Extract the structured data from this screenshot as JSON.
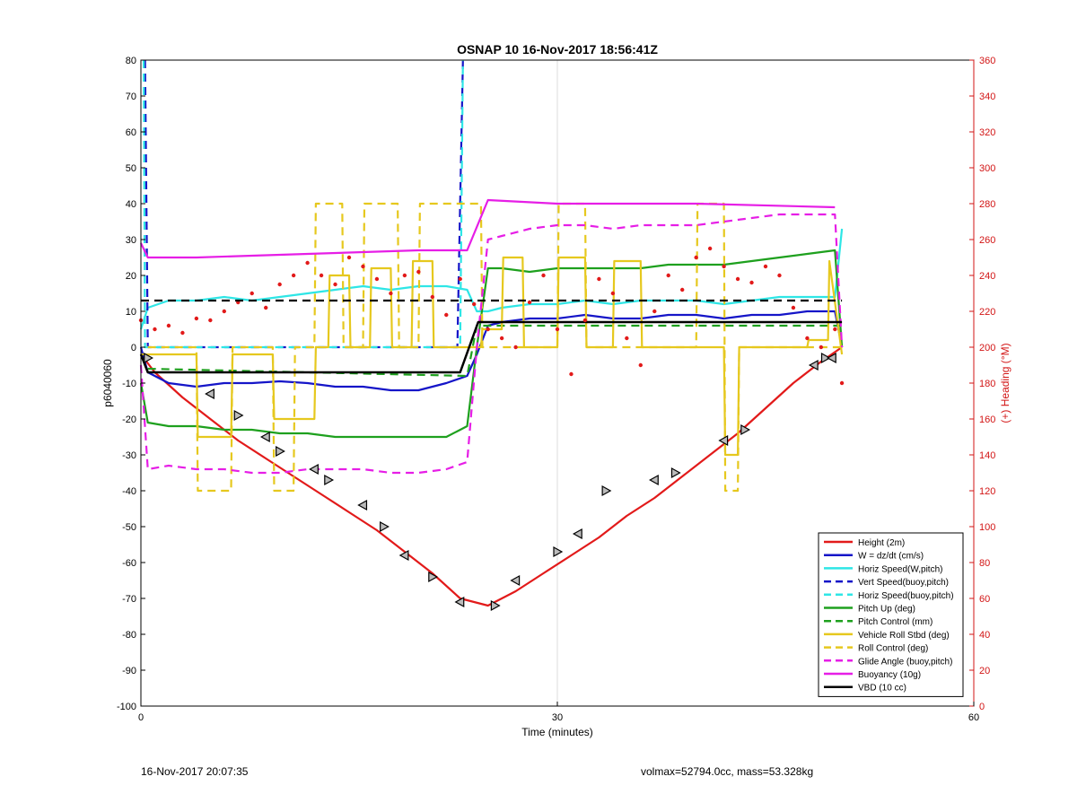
{
  "chart_data": {
    "type": "line",
    "title": "OSNAP 10 16-Nov-2017 18:56:41Z",
    "xlabel": "Time (minutes)",
    "ylabel": "p6040060",
    "y2label": "(+) Heading (°M)",
    "xlim": [
      0,
      60
    ],
    "ylim": [
      -100,
      80
    ],
    "y2lim": [
      0,
      360
    ],
    "xticks": [
      0,
      30,
      60
    ],
    "yticks": [
      -100,
      -90,
      -80,
      -70,
      -60,
      -50,
      -40,
      -30,
      -20,
      -10,
      0,
      10,
      20,
      30,
      40,
      50,
      60,
      70,
      80
    ],
    "y2ticks": [
      0,
      20,
      40,
      60,
      80,
      100,
      120,
      140,
      160,
      180,
      200,
      220,
      240,
      260,
      280,
      300,
      320,
      340,
      360
    ],
    "grid": "x-only",
    "legend_position": "bottom-right",
    "colors": {
      "height": "#e21a1a",
      "w": "#1515c8",
      "horiz_speed": "#2ee6e6",
      "vert_speed_buoy": "#1515c8",
      "horiz_speed_buoy": "#2ee6e6",
      "pitch": "#1ea01e",
      "pitch_control": "#1ea01e",
      "roll": "#e6c81e",
      "roll_control": "#e6c81e",
      "glide_angle": "#e61ee6",
      "buoyancy": "#e61ee6",
      "vbd": "#000000",
      "heading": "#e21a1a",
      "heading_axis": "#d21414"
    },
    "series": [
      {
        "key": "height",
        "name": "Height (2m)",
        "style": "solid",
        "x": [
          0,
          1,
          3,
          5,
          7,
          9,
          11,
          13,
          15,
          17,
          19,
          21,
          23,
          24,
          25,
          27,
          29,
          31,
          33,
          35,
          37,
          39,
          41,
          43,
          45,
          47,
          49,
          50.5
        ],
        "y": [
          -2,
          -7,
          -14,
          -20,
          -26,
          -31,
          -36,
          -41,
          -46,
          -51,
          -57,
          -63,
          -70,
          -71,
          -72,
          -68,
          -63,
          -58,
          -53,
          -47,
          -42,
          -36,
          -30,
          -24,
          -17,
          -10,
          -4,
          0
        ]
      },
      {
        "key": "w",
        "name": "W = dz/dt (cm/s)",
        "style": "solid",
        "x": [
          0,
          0.5,
          2,
          4,
          6,
          8,
          10,
          12,
          14,
          16,
          18,
          20,
          22,
          23.5,
          24.2,
          25,
          26,
          28,
          30,
          32,
          34,
          36,
          38,
          40,
          42,
          44,
          46,
          48,
          50,
          50.5
        ],
        "y": [
          0,
          -7,
          -10,
          -11,
          -10,
          -10,
          -9.5,
          -10,
          -11,
          -11,
          -12,
          -12,
          -10,
          -8,
          -2,
          6,
          7,
          8,
          8,
          9,
          8,
          8,
          9,
          9,
          8,
          9,
          9,
          10,
          10,
          0
        ]
      },
      {
        "key": "horiz_speed",
        "name": "Horiz Speed(W,pitch)",
        "style": "solid",
        "x": [
          0,
          0.5,
          2,
          4,
          6,
          8,
          10,
          12,
          14,
          16,
          18,
          20,
          22,
          23.5,
          24.2,
          25,
          26,
          28,
          30,
          32,
          34,
          36,
          38,
          40,
          42,
          44,
          46,
          48,
          50,
          50.5
        ],
        "y": [
          5,
          11,
          13,
          13,
          14,
          13,
          14,
          15,
          16,
          17,
          16,
          17,
          17,
          16,
          10,
          10,
          11,
          12,
          12,
          13,
          12,
          13,
          13,
          13,
          12,
          13,
          14,
          14,
          14,
          33
        ]
      },
      {
        "key": "vert_speed_buoy",
        "name": "Vert Speed(buoy,pitch)",
        "style": "dashed",
        "x": [
          0.3,
          0.5,
          22.8,
          23.2
        ],
        "y": [
          80,
          0,
          0,
          80
        ]
      },
      {
        "key": "horiz_speed_buoy",
        "name": "Horiz Speed(buoy,pitch)",
        "style": "dashed",
        "x": [
          0.2,
          0.3,
          1,
          23,
          23.2
        ],
        "y": [
          80,
          0,
          0,
          0,
          80
        ]
      },
      {
        "key": "pitch",
        "name": "Pitch Up (deg)",
        "style": "solid",
        "x": [
          0,
          0.5,
          2,
          4,
          6,
          8,
          10,
          12,
          14,
          16,
          18,
          20,
          22,
          23.5,
          24.2,
          25,
          26,
          28,
          30,
          32,
          34,
          36,
          38,
          40,
          42,
          44,
          46,
          48,
          50,
          50.5
        ],
        "y": [
          -10,
          -21,
          -22,
          -22,
          -23,
          -23,
          -24,
          -24,
          -25,
          -25,
          -25,
          -25,
          -25,
          -22,
          0,
          22,
          22,
          21,
          22,
          22,
          22,
          22,
          23,
          23,
          23,
          24,
          25,
          26,
          27,
          0
        ]
      },
      {
        "key": "pitch_control",
        "name": "Pitch Control (mm)",
        "style": "dashed",
        "x": [
          0.5,
          23.5,
          24.2,
          50.5
        ],
        "y": [
          -6,
          -8,
          6,
          6
        ]
      },
      {
        "key": "roll",
        "name": "Vehicle Roll Stbd (deg)",
        "style": "solid",
        "x": [
          0,
          1,
          4,
          4.1,
          6.5,
          6.6,
          9.5,
          9.6,
          12.5,
          12.6,
          13.5,
          13.6,
          15,
          15.1,
          16.5,
          16.6,
          18,
          18.1,
          19.5,
          19.6,
          21,
          21.1,
          23,
          24.5,
          24.6,
          26,
          26.1,
          27.5,
          27.6,
          30,
          30.1,
          32,
          32.1,
          34,
          34.1,
          36,
          36.1,
          42,
          42.1,
          43,
          43.1,
          48,
          48.1,
          49.5,
          49.6,
          50.5
        ],
        "y": [
          -2,
          -2,
          -2,
          -25,
          -25,
          -2,
          -2,
          -20,
          -20,
          0,
          0,
          20,
          20,
          0,
          0,
          22,
          22,
          0,
          0,
          24,
          24,
          0,
          0,
          0,
          5,
          5,
          25,
          25,
          0,
          0,
          25,
          25,
          0,
          0,
          24,
          24,
          0,
          0,
          -30,
          -30,
          0,
          0,
          2,
          2,
          24,
          -2
        ]
      },
      {
        "key": "roll_control",
        "name": "Roll Control (deg)",
        "style": "dashed",
        "x": [
          0.5,
          4,
          4.1,
          6.5,
          6.6,
          9.5,
          9.6,
          11,
          11.1,
          12.5,
          12.6,
          14.5,
          14.6,
          16,
          16.1,
          18.5,
          18.6,
          20,
          20.1,
          24.5,
          24.6,
          30,
          30.1,
          32,
          32.1,
          40,
          40.1,
          42,
          42.1,
          43,
          43.1,
          50.5
        ],
        "y": [
          0,
          0,
          -40,
          -40,
          0,
          0,
          -40,
          -40,
          0,
          0,
          40,
          40,
          0,
          0,
          40,
          40,
          0,
          0,
          40,
          40,
          0,
          0,
          40,
          40,
          0,
          0,
          40,
          40,
          -40,
          -40,
          0,
          0
        ]
      },
      {
        "key": "glide_angle",
        "name": "Glide Angle (buoy,pitch)",
        "style": "dashed",
        "x": [
          0,
          0.5,
          2,
          4,
          6,
          8,
          10,
          12,
          14,
          16,
          18,
          20,
          22,
          23.5,
          24.2,
          25,
          26,
          28,
          30,
          32,
          34,
          36,
          38,
          40,
          42,
          44,
          46,
          48,
          50,
          50.5
        ],
        "y": [
          -5,
          -34,
          -33,
          -34,
          -34,
          -35,
          -35,
          -34,
          -34,
          -34,
          -35,
          -35,
          -34,
          -32,
          0,
          30,
          31,
          33,
          34,
          34,
          33,
          34,
          34,
          34,
          35,
          36,
          37,
          37,
          37,
          0
        ]
      },
      {
        "key": "buoyancy",
        "name": "Buoyancy (10g)",
        "style": "solid",
        "x": [
          0,
          0.5,
          4,
          8,
          12,
          16,
          20,
          23,
          23.5,
          25,
          30,
          40,
          50
        ],
        "y": [
          29,
          25,
          25,
          25.5,
          26,
          26.5,
          27,
          27,
          27,
          41,
          40,
          40,
          39
        ]
      },
      {
        "key": "vbd",
        "name": "VBD (10 cc)",
        "style": "solid",
        "x": [
          0,
          0.5,
          23,
          24.3,
          50.5
        ],
        "y": [
          -2,
          -7,
          -7,
          7,
          7
        ]
      },
      {
        "key": "heading",
        "name": "",
        "style": "dotted",
        "axis": "right",
        "x": [
          0,
          1,
          2,
          3,
          4,
          5,
          6,
          7,
          8,
          9,
          10,
          11,
          12,
          13,
          14,
          15,
          16,
          17,
          18,
          19,
          20,
          21,
          22,
          23,
          24,
          25,
          26,
          27,
          28,
          29,
          30,
          31,
          32,
          33,
          34,
          35,
          36,
          37,
          38,
          39,
          40,
          41,
          42,
          43,
          44,
          45,
          46,
          47,
          48,
          49,
          50,
          50.5
        ],
        "y": [
          215,
          210,
          212,
          208,
          216,
          215,
          220,
          225,
          230,
          222,
          235,
          240,
          247,
          240,
          235,
          250,
          245,
          238,
          230,
          240,
          242,
          228,
          218,
          238,
          224,
          210,
          205,
          200,
          225,
          240,
          210,
          185,
          215,
          238,
          230,
          205,
          190,
          220,
          240,
          232,
          250,
          255,
          245,
          238,
          236,
          245,
          240,
          222,
          205,
          200,
          210,
          180
        ]
      },
      {
        "key": "heading_ref",
        "name": "",
        "style": "dashed",
        "axis": "right",
        "x": [
          0,
          50.5
        ],
        "y": [
          226,
          226
        ]
      }
    ],
    "markers": {
      "name": "",
      "x": [
        0.5,
        5,
        7,
        9,
        10,
        12.5,
        13.5,
        16,
        17.5,
        19,
        21,
        23,
        25.5,
        27,
        30,
        31.5,
        33.5,
        37,
        38.5,
        42,
        43.5,
        48.5,
        49.3,
        49.8
      ],
      "y": [
        -3,
        -13,
        -19,
        -25,
        -29,
        -34,
        -37,
        -44,
        -50,
        -58,
        -64,
        -71,
        -72,
        -65,
        -57,
        -52,
        -40,
        -37,
        -35,
        -26,
        -23,
        -5,
        -3,
        -3
      ]
    },
    "legend": [
      "Height (2m)",
      "W = dz/dt (cm/s)",
      "Horiz Speed(W,pitch)",
      "Vert Speed(buoy,pitch)",
      "Horiz Speed(buoy,pitch)",
      "Pitch Up (deg)",
      "Pitch Control (mm)",
      "Vehicle Roll Stbd (deg)",
      "Roll Control (deg)",
      "Glide Angle (buoy,pitch)",
      "Buoyancy (10g)",
      "VBD (10 cc)"
    ]
  },
  "footer": {
    "left": "16-Nov-2017 20:07:35",
    "right": "volmax=52794.0cc, mass=53.328kg"
  }
}
